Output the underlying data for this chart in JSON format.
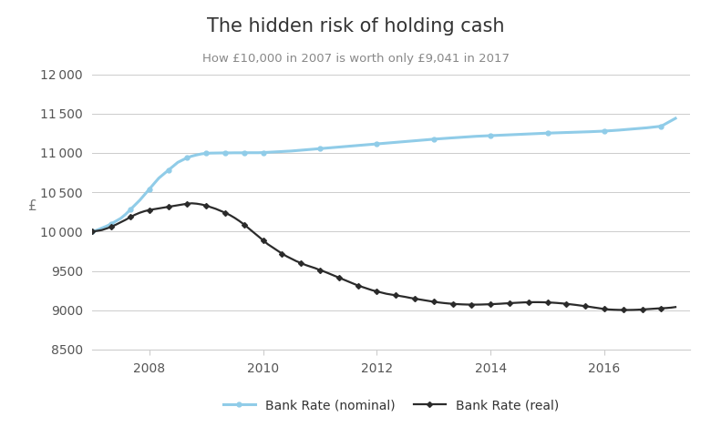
{
  "title": "The hidden risk of holding cash",
  "subtitle": "How £10,000 in 2007 is worth only £9,041 in 2017",
  "ylabel": "£",
  "ylim": [
    8500,
    12000
  ],
  "yticks": [
    8500,
    9000,
    9500,
    10000,
    10500,
    11000,
    11500,
    12000
  ],
  "xticks": [
    2008,
    2010,
    2012,
    2014,
    2016
  ],
  "xlim": [
    2007.0,
    2017.5
  ],
  "background_color": "#ffffff",
  "grid_color": "#cccccc",
  "nominal_color": "#90cce8",
  "real_color": "#2b2b2b",
  "nominal_label": "Bank Rate (nominal)",
  "real_label": "Bank Rate (real)",
  "nominal_data": {
    "years": [
      2007.0,
      2007.083,
      2007.167,
      2007.25,
      2007.333,
      2007.417,
      2007.5,
      2007.583,
      2007.667,
      2007.75,
      2007.833,
      2007.917,
      2008.0,
      2008.083,
      2008.167,
      2008.25,
      2008.333,
      2008.417,
      2008.5,
      2008.583,
      2008.667,
      2008.75,
      2008.833,
      2008.917,
      2009.0,
      2009.083,
      2009.167,
      2009.25,
      2009.333,
      2009.417,
      2009.5,
      2009.583,
      2009.667,
      2009.75,
      2009.833,
      2009.917,
      2010.0,
      2010.25,
      2010.5,
      2010.75,
      2011.0,
      2011.25,
      2011.5,
      2011.75,
      2012.0,
      2012.25,
      2012.5,
      2012.75,
      2013.0,
      2013.25,
      2013.5,
      2013.75,
      2014.0,
      2014.25,
      2014.5,
      2014.75,
      2015.0,
      2015.25,
      2015.5,
      2015.75,
      2016.0,
      2016.25,
      2016.5,
      2016.75,
      2017.0,
      2017.25
    ],
    "values": [
      10000,
      10020,
      10045,
      10070,
      10100,
      10135,
      10170,
      10220,
      10280,
      10340,
      10400,
      10470,
      10540,
      10610,
      10680,
      10730,
      10780,
      10830,
      10880,
      10910,
      10940,
      10960,
      10975,
      10988,
      10995,
      10998,
      10999,
      11000,
      11001,
      11001,
      11002,
      11002,
      11002,
      11003,
      11003,
      11003,
      11005,
      11015,
      11025,
      11040,
      11055,
      11070,
      11085,
      11100,
      11115,
      11130,
      11145,
      11160,
      11175,
      11188,
      11200,
      11212,
      11220,
      11228,
      11236,
      11244,
      11252,
      11258,
      11264,
      11270,
      11278,
      11290,
      11305,
      11320,
      11340,
      11440
    ]
  },
  "real_data": {
    "years": [
      2007.0,
      2007.083,
      2007.167,
      2007.25,
      2007.333,
      2007.417,
      2007.5,
      2007.583,
      2007.667,
      2007.75,
      2007.833,
      2007.917,
      2008.0,
      2008.083,
      2008.167,
      2008.25,
      2008.333,
      2008.417,
      2008.5,
      2008.583,
      2008.667,
      2008.75,
      2008.833,
      2008.917,
      2009.0,
      2009.083,
      2009.167,
      2009.25,
      2009.333,
      2009.417,
      2009.5,
      2009.583,
      2009.667,
      2009.75,
      2009.833,
      2009.917,
      2010.0,
      2010.083,
      2010.167,
      2010.25,
      2010.333,
      2010.417,
      2010.5,
      2010.583,
      2010.667,
      2010.75,
      2010.833,
      2010.917,
      2011.0,
      2011.083,
      2011.167,
      2011.25,
      2011.333,
      2011.417,
      2011.5,
      2011.583,
      2011.667,
      2011.75,
      2011.833,
      2011.917,
      2012.0,
      2012.083,
      2012.167,
      2012.25,
      2012.333,
      2012.417,
      2012.5,
      2012.583,
      2012.667,
      2012.75,
      2012.833,
      2012.917,
      2013.0,
      2013.083,
      2013.167,
      2013.25,
      2013.333,
      2013.417,
      2013.5,
      2013.583,
      2013.667,
      2013.75,
      2013.833,
      2013.917,
      2014.0,
      2014.083,
      2014.167,
      2014.25,
      2014.333,
      2014.417,
      2014.5,
      2014.583,
      2014.667,
      2014.75,
      2014.833,
      2014.917,
      2015.0,
      2015.083,
      2015.167,
      2015.25,
      2015.333,
      2015.417,
      2015.5,
      2015.583,
      2015.667,
      2015.75,
      2015.833,
      2015.917,
      2016.0,
      2016.083,
      2016.167,
      2016.25,
      2016.333,
      2016.417,
      2016.5,
      2016.583,
      2016.667,
      2016.75,
      2016.833,
      2016.917,
      2017.0,
      2017.083,
      2017.167,
      2017.25
    ],
    "values": [
      10000,
      10010,
      10020,
      10040,
      10060,
      10090,
      10120,
      10150,
      10185,
      10215,
      10240,
      10260,
      10275,
      10285,
      10295,
      10305,
      10315,
      10325,
      10335,
      10345,
      10355,
      10360,
      10355,
      10345,
      10330,
      10310,
      10290,
      10265,
      10240,
      10210,
      10175,
      10135,
      10090,
      10040,
      9990,
      9940,
      9890,
      9840,
      9800,
      9760,
      9720,
      9685,
      9655,
      9625,
      9600,
      9575,
      9555,
      9535,
      9510,
      9490,
      9465,
      9440,
      9415,
      9390,
      9365,
      9340,
      9315,
      9295,
      9275,
      9255,
      9240,
      9225,
      9210,
      9200,
      9190,
      9180,
      9170,
      9158,
      9148,
      9138,
      9128,
      9118,
      9108,
      9100,
      9093,
      9087,
      9082,
      9078,
      9075,
      9073,
      9072,
      9072,
      9073,
      9075,
      9077,
      9080,
      9083,
      9087,
      9090,
      9094,
      9097,
      9100,
      9102,
      9103,
      9103,
      9102,
      9100,
      9097,
      9093,
      9088,
      9082,
      9075,
      9068,
      9060,
      9052,
      9043,
      9034,
      9025,
      9016,
      9010,
      9007,
      9005,
      9004,
      9004,
      9005,
      9007,
      9010,
      9014,
      9018,
      9022,
      9026,
      9028,
      9033,
      9041
    ]
  }
}
